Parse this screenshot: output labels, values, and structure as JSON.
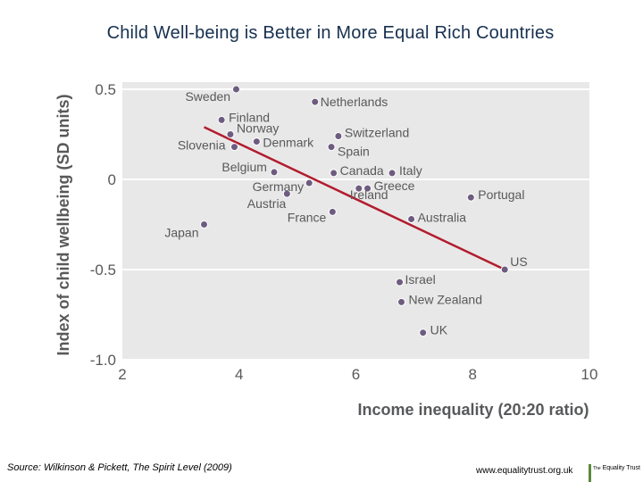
{
  "page": {
    "title": "Child Well-being is Better in More Equal Rich Countries",
    "source": "Source: Wilkinson & Pickett, The Spirit Level (2009)",
    "url": "www.equalitytrust.org.uk",
    "logo_small": "The",
    "logo_main": "Equality Trust"
  },
  "chart_data": {
    "type": "scatter",
    "title": "Child Well-being is Better in More Equal Rich Countries",
    "xlabel": "Income inequality (20:20 ratio)",
    "ylabel": "Index of child wellbeing (SD units)",
    "xlim": [
      2,
      10
    ],
    "ylim": [
      -1.0,
      0.5
    ],
    "xticks": [
      2,
      4,
      6,
      8,
      10
    ],
    "yticks": [
      0.5,
      0,
      -0.5,
      -1.0
    ],
    "xtick_labels": [
      "2",
      "4",
      "6",
      "8",
      "10"
    ],
    "ytick_labels": [
      "0.5",
      "0",
      "-0.5",
      "-1.0"
    ],
    "grid": "horizontal",
    "background": "#e9e8e8",
    "point_color": "#6e5c80",
    "trend_color": "#b21c2e",
    "trendline": {
      "x": [
        3.4,
        8.55
      ],
      "y": [
        0.29,
        -0.5
      ]
    },
    "points": [
      {
        "label": "Sweden",
        "x": 3.95,
        "y": 0.5
      },
      {
        "label": "Netherlands",
        "x": 5.3,
        "y": 0.43
      },
      {
        "label": "Finland",
        "x": 3.7,
        "y": 0.33
      },
      {
        "label": "Norway",
        "x": 3.85,
        "y": 0.25
      },
      {
        "label": "Slovenia",
        "x": 3.92,
        "y": 0.18
      },
      {
        "label": "Denmark",
        "x": 4.3,
        "y": 0.21
      },
      {
        "label": "Switzerland",
        "x": 5.7,
        "y": 0.24
      },
      {
        "label": "Spain",
        "x": 5.58,
        "y": 0.18
      },
      {
        "label": "Belgium",
        "x": 4.6,
        "y": 0.04
      },
      {
        "label": "Canada",
        "x": 5.62,
        "y": 0.035
      },
      {
        "label": "Italy",
        "x": 6.62,
        "y": 0.035
      },
      {
        "label": "Germany",
        "x": 5.2,
        "y": -0.02
      },
      {
        "label": "Greece",
        "x": 6.2,
        "y": -0.05
      },
      {
        "label": "Ireland",
        "x": 6.05,
        "y": -0.05
      },
      {
        "label": "Austria",
        "x": 4.82,
        "y": -0.08
      },
      {
        "label": "Portugal",
        "x": 7.97,
        "y": -0.1
      },
      {
        "label": "France",
        "x": 5.6,
        "y": -0.18
      },
      {
        "label": "Australia",
        "x": 6.95,
        "y": -0.22
      },
      {
        "label": "Japan",
        "x": 3.4,
        "y": -0.25
      },
      {
        "label": "US",
        "x": 8.55,
        "y": -0.5
      },
      {
        "label": "Israel",
        "x": 6.75,
        "y": -0.57
      },
      {
        "label": "New Zealand",
        "x": 6.78,
        "y": -0.68
      },
      {
        "label": "UK",
        "x": 7.15,
        "y": -0.85
      }
    ]
  }
}
